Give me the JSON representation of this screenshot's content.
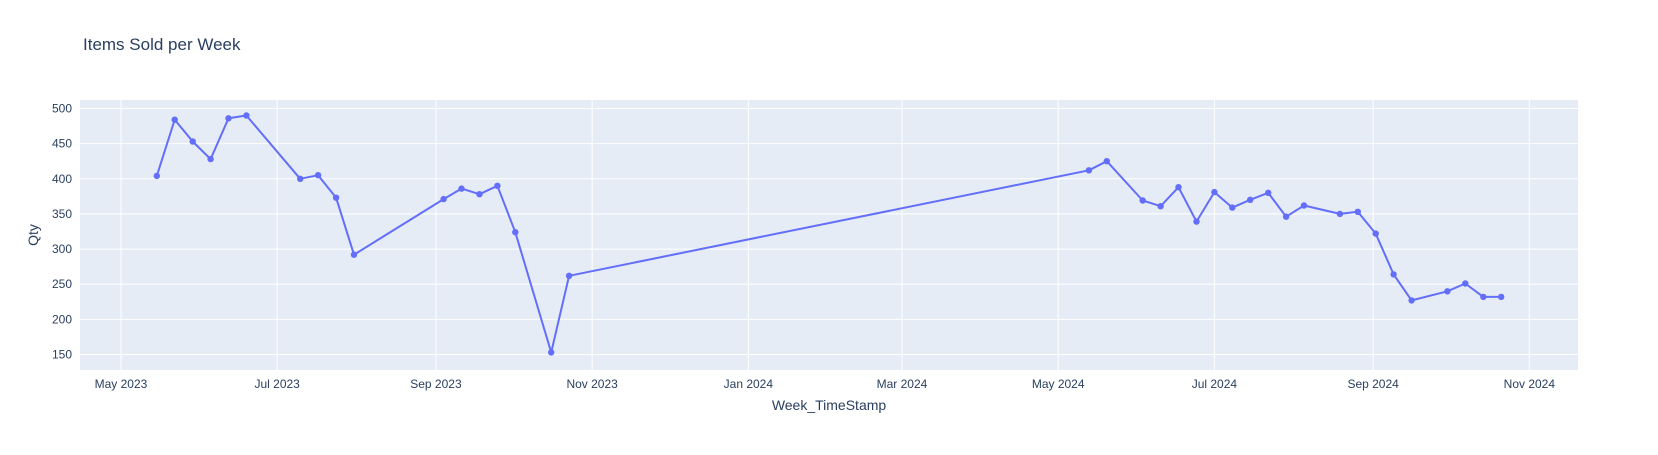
{
  "chart_data": {
    "type": "line",
    "title": "Items Sold per Week",
    "xlabel": "Week_TimeStamp",
    "ylabel": "Qty",
    "x_tick_labels": [
      "May 2023",
      "Jul 2023",
      "Sep 2023",
      "Nov 2023",
      "Jan 2024",
      "Mar 2024",
      "May 2024",
      "Jul 2024",
      "Sep 2024",
      "Nov 2024"
    ],
    "x_tick_dates": [
      "2023-05-01",
      "2023-07-01",
      "2023-09-01",
      "2023-11-01",
      "2024-01-01",
      "2024-03-01",
      "2024-05-01",
      "2024-07-01",
      "2024-09-01",
      "2024-11-01"
    ],
    "x_range": [
      "2023-04-15",
      "2024-11-20"
    ],
    "y_ticks": [
      150,
      200,
      250,
      300,
      350,
      400,
      450,
      500
    ],
    "ylim": [
      128,
      512
    ],
    "grid": true,
    "legend": "none",
    "colors": {
      "line": "#636efa",
      "plot_bg": "#e5ecf6",
      "grid": "#ffffff",
      "text": "#2a3f5f"
    },
    "series": [
      {
        "x": [
          "2023-05-15",
          "2023-05-22",
          "2023-05-29",
          "2023-06-05",
          "2023-06-12",
          "2023-06-19",
          "2023-07-10",
          "2023-07-17",
          "2023-07-24",
          "2023-07-31",
          "2023-09-04",
          "2023-09-11",
          "2023-09-18",
          "2023-09-25",
          "2023-10-02",
          "2023-10-16",
          "2023-10-23",
          "2024-05-13",
          "2024-05-20",
          "2024-06-03",
          "2024-06-10",
          "2024-06-17",
          "2024-06-24",
          "2024-07-01",
          "2024-07-08",
          "2024-07-15",
          "2024-07-22",
          "2024-07-29",
          "2024-08-05",
          "2024-08-19",
          "2024-08-26",
          "2024-09-02",
          "2024-09-09",
          "2024-09-16",
          "2024-09-30",
          "2024-10-07",
          "2024-10-14",
          "2024-10-21"
        ],
        "y": [
          404,
          484,
          453,
          428,
          486,
          490,
          400,
          405,
          373,
          292,
          371,
          386,
          378,
          390,
          324,
          153,
          262,
          412,
          425,
          369,
          361,
          388,
          339,
          381,
          359,
          370,
          380,
          346,
          362,
          350,
          353,
          322,
          264,
          227,
          240,
          251,
          232,
          232
        ]
      }
    ]
  }
}
